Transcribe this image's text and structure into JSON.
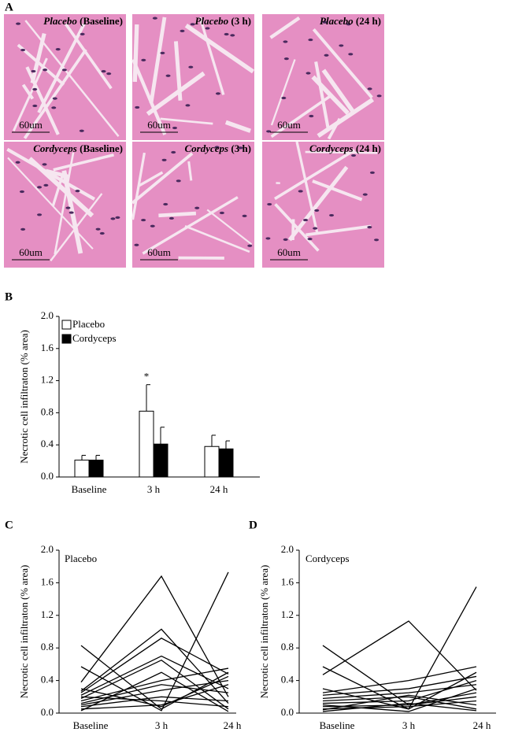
{
  "figure_a": {
    "label": "A",
    "images": [
      {
        "treatment": "Placebo",
        "time": "(Baseline)",
        "scale_bar": "60um"
      },
      {
        "treatment": "Placebo",
        "time": "(3 h)",
        "scale_bar": "60um"
      },
      {
        "treatment": "Placebo",
        "time": "(24 h)",
        "scale_bar": "60um"
      },
      {
        "treatment": "Cordyceps",
        "time": "(Baseline)",
        "scale_bar": "60um"
      },
      {
        "treatment": "Cordyceps",
        "time": "(3 h)",
        "scale_bar": "60um"
      },
      {
        "treatment": "Cordyceps",
        "time": "(24 h)",
        "scale_bar": "60um"
      }
    ]
  },
  "chart_data": [
    {
      "type": "bar",
      "panel_label": "B",
      "y_label": "Necrotic cell infiltraton (% area)",
      "categories": [
        "Baseline",
        "3 h",
        "24 h"
      ],
      "series": [
        {
          "name": "Placebo",
          "color": "#ffffff",
          "values": [
            0.21,
            0.82,
            0.38
          ],
          "errors": [
            0.06,
            0.33,
            0.14
          ]
        },
        {
          "name": "Cordyceps",
          "color": "#000000",
          "values": [
            0.21,
            0.41,
            0.35
          ],
          "errors": [
            0.06,
            0.21,
            0.1
          ]
        }
      ],
      "annotations": [
        {
          "text": "*",
          "category": "3 h",
          "series": "Placebo"
        }
      ],
      "ylim": [
        0,
        2.0
      ],
      "yticks": [
        {
          "value": 0,
          "label": "0.0"
        },
        0.4,
        0.8,
        1.2,
        1.6,
        {
          "value": 2,
          "label": "2.0"
        }
      ],
      "legend": "top-left"
    },
    {
      "type": "line",
      "panel_label": "C",
      "title": "Placebo",
      "y_label": "Necrotic cell infiltraton (% area)",
      "categories": [
        "Baseline",
        "3 h",
        "24 h"
      ],
      "color": "#000000",
      "series": [
        {
          "values": [
            0.83,
            0.05,
            0.5
          ]
        },
        {
          "values": [
            0.38,
            1.68,
            0.2
          ]
        },
        {
          "values": [
            0.57,
            0.03,
            1.73
          ]
        },
        {
          "values": [
            0.27,
            1.03,
            0.12
          ]
        },
        {
          "values": [
            0.25,
            0.92,
            0.48
          ]
        },
        {
          "values": [
            0.22,
            0.7,
            0.3
          ]
        },
        {
          "values": [
            0.18,
            0.65,
            0.05
          ]
        },
        {
          "values": [
            0.15,
            0.4,
            0.55
          ]
        },
        {
          "values": [
            0.12,
            0.35,
            0.25
          ]
        },
        {
          "values": [
            0.1,
            0.28,
            0.4
          ]
        },
        {
          "values": [
            0.08,
            0.2,
            0.15
          ]
        },
        {
          "values": [
            0.05,
            0.1,
            0.35
          ]
        },
        {
          "values": [
            0.03,
            0.5,
            0.02
          ]
        },
        {
          "values": [
            0.2,
            0.15,
            0.08
          ]
        },
        {
          "values": [
            0.3,
            0.08,
            0.45
          ]
        }
      ],
      "ylim": [
        0,
        2.0
      ],
      "yticks": [
        {
          "value": 0,
          "label": "0.0"
        },
        0.4,
        0.8,
        1.2,
        1.6,
        {
          "value": 2,
          "label": "2.0"
        }
      ]
    },
    {
      "type": "line",
      "panel_label": "D",
      "title": "Cordyceps",
      "y_label": "Necrotic cell infiltraton (% area)",
      "categories": [
        "Baseline",
        "3 h",
        "24 h"
      ],
      "color": "#000000",
      "series": [
        {
          "values": [
            0.83,
            0.1,
            0.25
          ]
        },
        {
          "values": [
            0.57,
            0.05,
            0.5
          ]
        },
        {
          "values": [
            0.47,
            1.13,
            0.28
          ]
        },
        {
          "values": [
            0.3,
            0.05,
            1.55
          ]
        },
        {
          "values": [
            0.25,
            0.4,
            0.57
          ]
        },
        {
          "values": [
            0.22,
            0.3,
            0.45
          ]
        },
        {
          "values": [
            0.18,
            0.25,
            0.35
          ]
        },
        {
          "values": [
            0.15,
            0.2,
            0.05
          ]
        },
        {
          "values": [
            0.12,
            0.15,
            0.4
          ]
        },
        {
          "values": [
            0.08,
            0.1,
            0.2
          ]
        },
        {
          "values": [
            0.05,
            0.08,
            0.15
          ]
        },
        {
          "values": [
            0.04,
            0.22,
            0.1
          ]
        },
        {
          "values": [
            0.1,
            0.02,
            0.3
          ]
        },
        {
          "values": [
            0.02,
            0.12,
            0.03
          ]
        }
      ],
      "ylim": [
        0,
        2.0
      ],
      "yticks": [
        {
          "value": 0,
          "label": "0.0"
        },
        0.4,
        0.8,
        1.2,
        1.6,
        {
          "value": 2,
          "label": "2.0"
        }
      ]
    }
  ]
}
